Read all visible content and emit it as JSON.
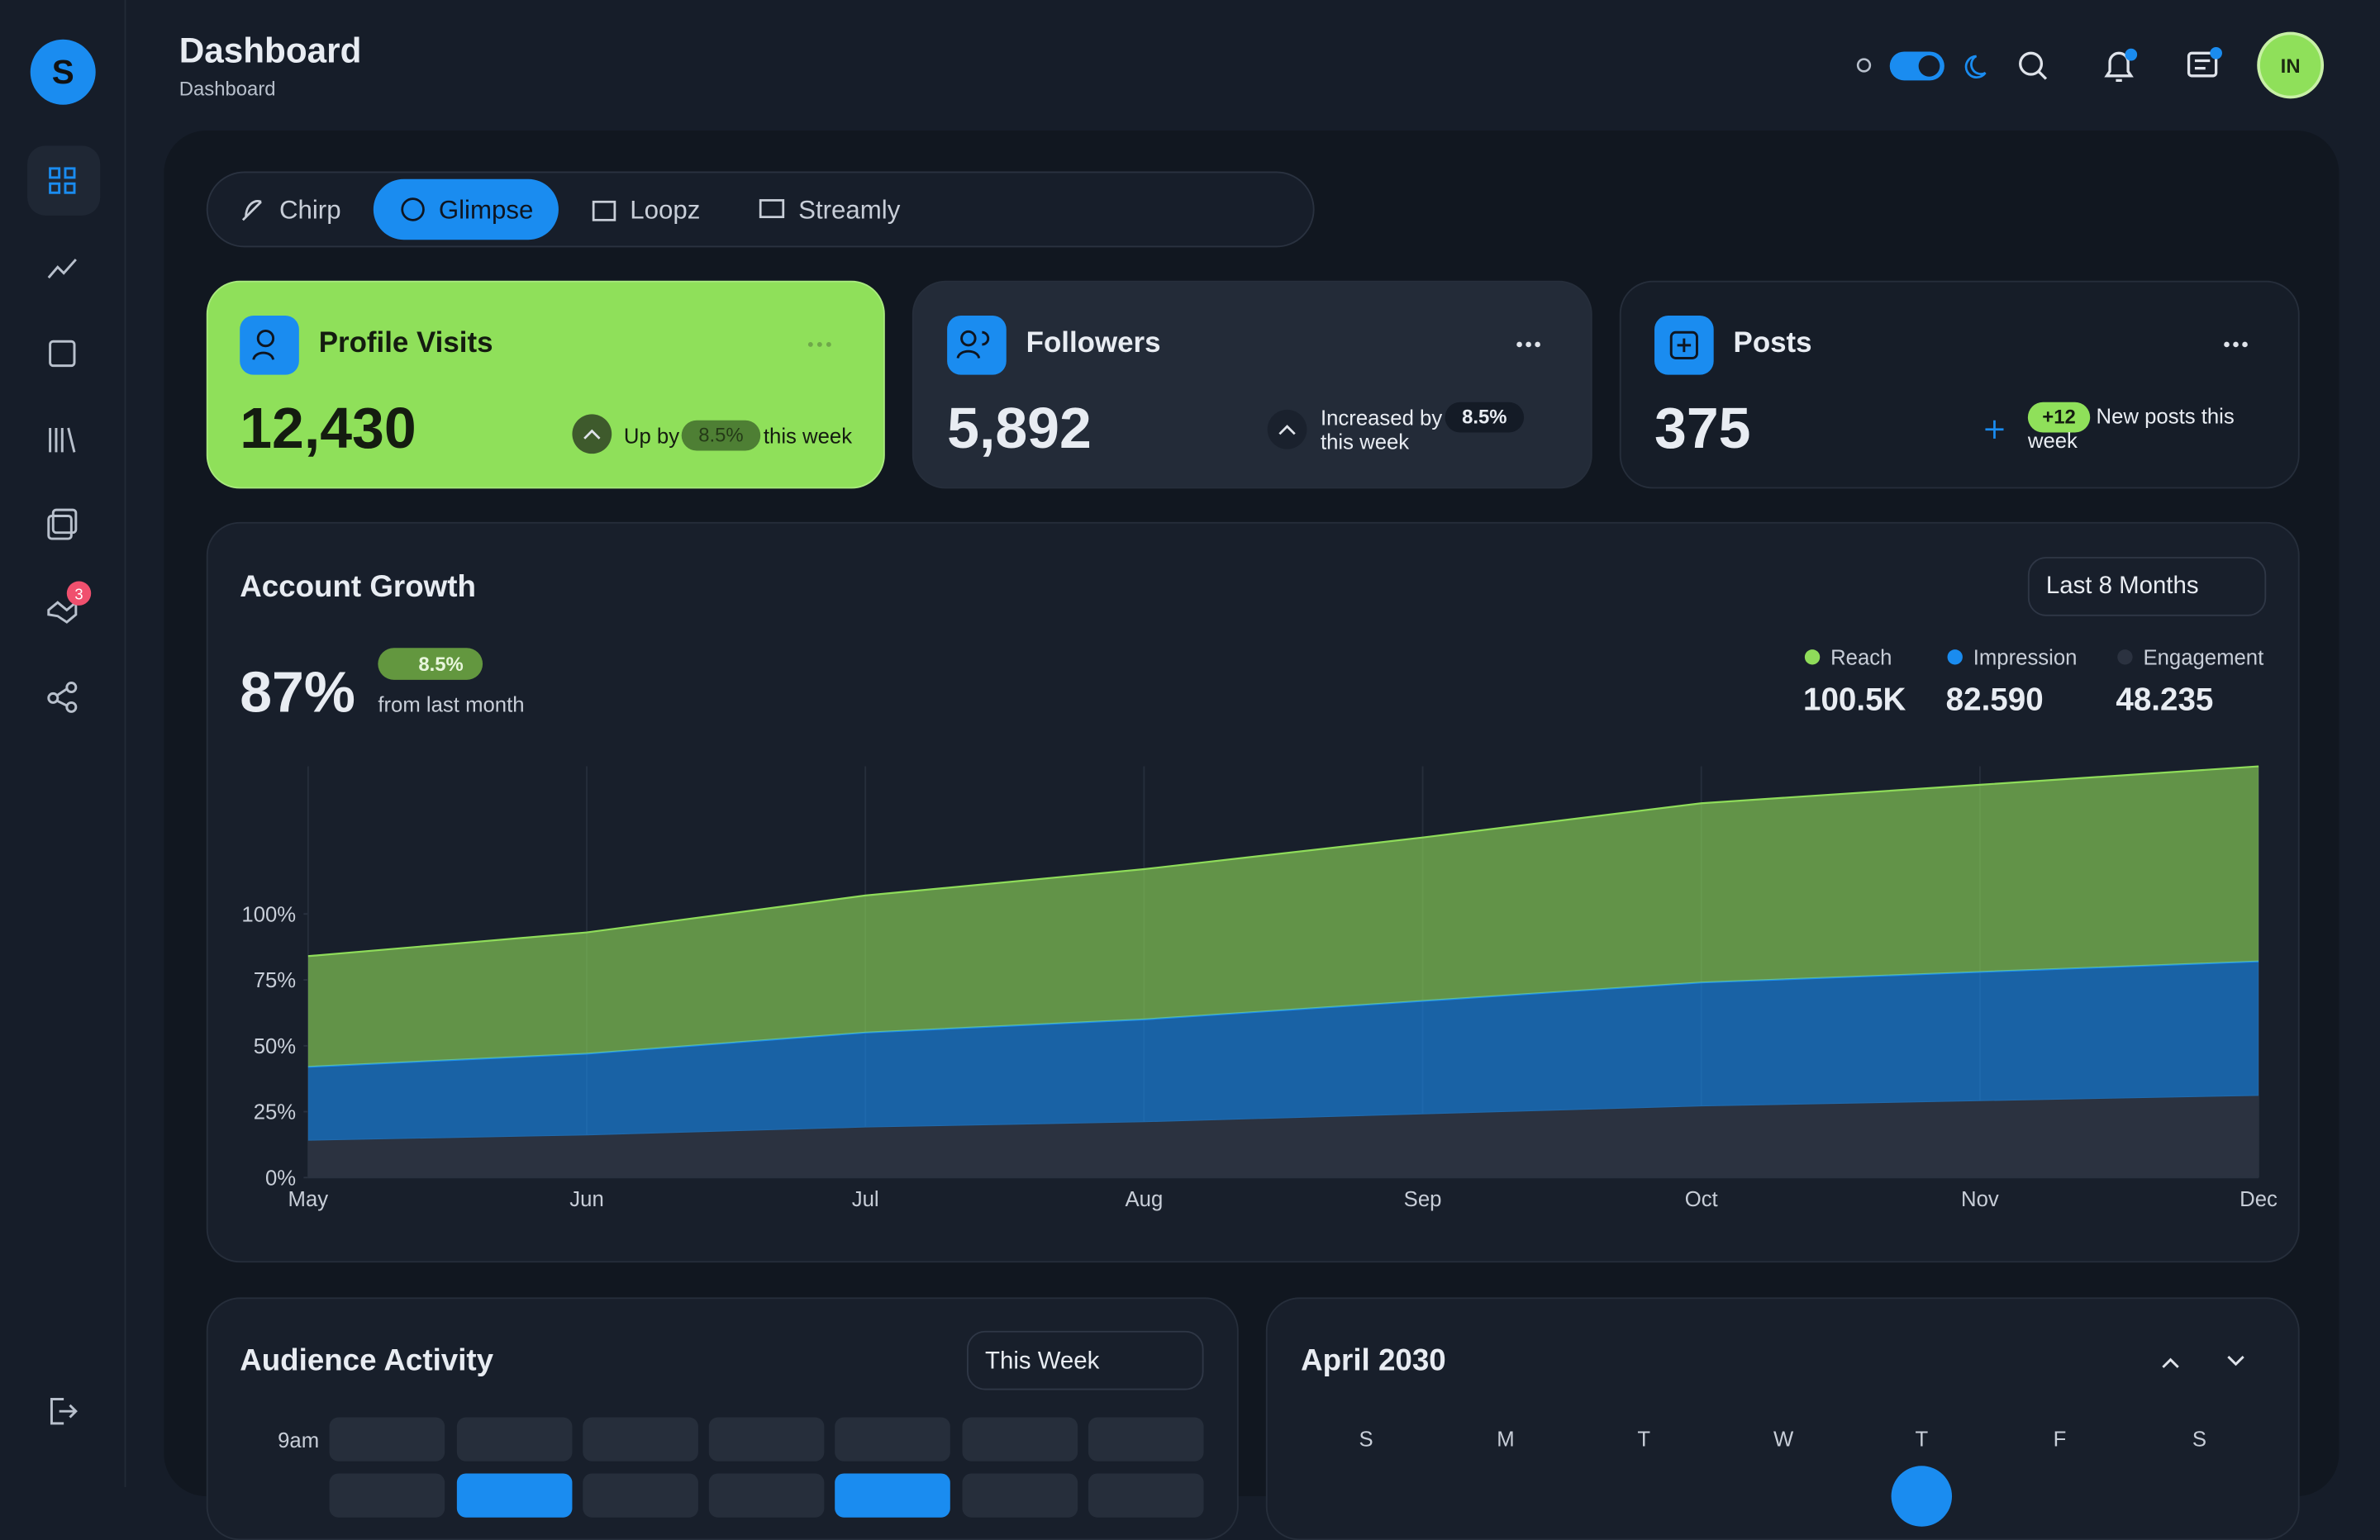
{
  "header": {
    "title": "Dashboard",
    "breadcrumb": "Dashboard",
    "avatar": "IN"
  },
  "sidebar": {
    "badge": "3"
  },
  "tabs": [
    "Chirp",
    "Glimpse",
    "Loopz",
    "Streamly"
  ],
  "cards": [
    {
      "title": "Profile Visits",
      "value": "12,430",
      "pre": "Up by",
      "change": "8.5%",
      "post": "this week"
    },
    {
      "title": "Followers",
      "value": "5,892",
      "pre": "Increased by",
      "change": "8.5%",
      "post": "this week"
    },
    {
      "title": "Posts",
      "value": "375",
      "change": "+12",
      "post": "New posts this week"
    }
  ],
  "growth": {
    "title": "Account Growth",
    "value": "87%",
    "change": "8.5%",
    "note": "from last month",
    "filter": "Last 8 Months"
  },
  "chart_data": {
    "type": "stacked_area",
    "categories": [
      "May",
      "Jun",
      "Jul",
      "Aug",
      "Sep",
      "Oct",
      "Nov",
      "Dec"
    ],
    "series": [
      {
        "name": "Reach",
        "total": "100.5K",
        "color": "#8fdc5a",
        "values": [
          42,
          46,
          52,
          57,
          62,
          68,
          71,
          74
        ]
      },
      {
        "name": "Impression",
        "total": "82.590",
        "color": "#1a8cf0",
        "values": [
          28,
          31,
          36,
          39,
          43,
          47,
          49,
          51
        ]
      },
      {
        "name": "Engagement",
        "total": "48.235",
        "color": "#2b3240",
        "values": [
          14,
          16,
          19,
          21,
          24,
          27,
          29,
          31
        ]
      }
    ],
    "ylim": [
      0,
      156
    ],
    "yticks": [
      {
        "value": 0,
        "label": "0%"
      },
      {
        "value": 25,
        "label": "25%"
      },
      {
        "value": 50,
        "label": "50%"
      },
      {
        "value": 75,
        "label": "75%"
      },
      {
        "value": 100,
        "label": "100%"
      }
    ],
    "grid": true
  },
  "audience": {
    "title": "Audience Activity",
    "filter": "This Week",
    "rows": [
      "9am"
    ]
  },
  "calendar": {
    "title": "April 2030",
    "weekdays": [
      "S",
      "M",
      "T",
      "W",
      "T",
      "F",
      "S"
    ]
  }
}
